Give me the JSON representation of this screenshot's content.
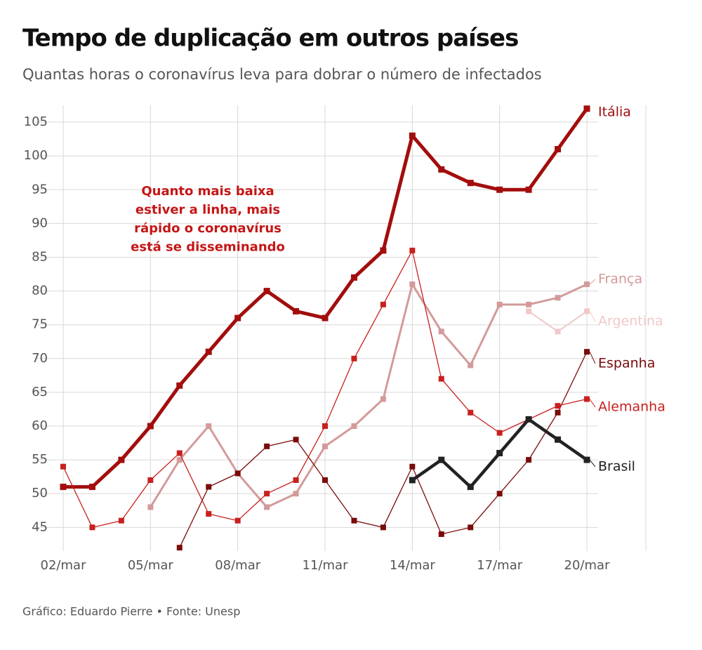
{
  "chart_data": {
    "type": "line",
    "title": "Tempo de duplicação em outros países",
    "subtitle": "Quantas horas o coronavírus leva para dobrar o número de infectados",
    "annotation": [
      "Quanto mais baixa",
      "estiver a linha, mais",
      "rápido o coronavírus",
      "está se disseminando"
    ],
    "source": "Gráfico: Eduardo Pierre • Fonte: Unesp",
    "categories": [
      "02/mar",
      null,
      null,
      "05/mar",
      null,
      null,
      "08/mar",
      null,
      null,
      "11/mar",
      null,
      null,
      "14/mar",
      null,
      null,
      "17/mar",
      null,
      null,
      "20/mar"
    ],
    "ylim": [
      41.5,
      107.5
    ],
    "yticks": [
      45,
      50,
      55,
      60,
      65,
      70,
      75,
      80,
      85,
      90,
      95,
      100,
      105
    ],
    "grid": true,
    "series": [
      {
        "name": "Itália",
        "color": "#a30d0d",
        "values": [
          51,
          51,
          55,
          60,
          66,
          71,
          76,
          80,
          77,
          76,
          82,
          86,
          103,
          98,
          96,
          95,
          95,
          101,
          107
        ]
      },
      {
        "name": "França",
        "color": "#d49a9a",
        "values": [
          null,
          null,
          null,
          48,
          55,
          60,
          53,
          48,
          50,
          57,
          60,
          64,
          81,
          74,
          69,
          78,
          78,
          79,
          81
        ]
      },
      {
        "name": "Argentina",
        "color": "#f0c8c8",
        "values": [
          null,
          null,
          null,
          null,
          null,
          null,
          null,
          null,
          null,
          null,
          null,
          null,
          null,
          null,
          null,
          null,
          77,
          74,
          77
        ]
      },
      {
        "name": "Espanha",
        "color": "#7a0b0b",
        "values": [
          null,
          null,
          null,
          null,
          42,
          51,
          53,
          57,
          58,
          52,
          46,
          45,
          54,
          44,
          45,
          50,
          55,
          62,
          71
        ]
      },
      {
        "name": "Alemanha",
        "color": "#c8201e",
        "values": [
          54,
          45,
          46,
          52,
          56,
          47,
          46,
          50,
          52,
          60,
          70,
          78,
          86,
          67,
          62,
          59,
          61,
          63,
          64
        ]
      },
      {
        "name": "Brasil",
        "color": "#222222",
        "values": [
          null,
          null,
          null,
          null,
          null,
          null,
          null,
          null,
          null,
          null,
          null,
          null,
          52,
          55,
          51,
          56,
          61,
          58,
          55
        ]
      }
    ]
  }
}
